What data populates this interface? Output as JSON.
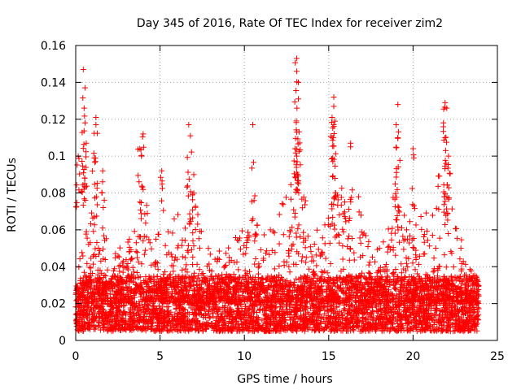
{
  "chart_data": {
    "type": "scatter",
    "title": "Day 345 of 2016, Rate Of TEC Index for receiver zim2",
    "xlabel": "GPS time / hours",
    "ylabel": "ROTI / TECUs",
    "xlim": [
      0,
      25
    ],
    "ylim": [
      0,
      0.16
    ],
    "xticks": [
      0,
      5,
      10,
      15,
      20,
      25
    ],
    "xtick_labels": [
      "0",
      "5",
      "10",
      "15",
      "20",
      "25"
    ],
    "yticks": [
      0,
      0.02,
      0.04,
      0.06,
      0.08,
      0.1,
      0.12,
      0.14,
      0.16
    ],
    "ytick_labels": [
      "0",
      "0.02",
      "0.04",
      "0.06",
      "0.08",
      "0.1",
      "0.12",
      "0.14",
      "0.16"
    ],
    "grid": true,
    "marker": "+",
    "color": "#ff0000",
    "data_x_range": [
      0,
      23.9
    ],
    "baseline_band": [
      0.005,
      0.035
    ],
    "series": [
      {
        "name": "ROTI",
        "peaks": [
          {
            "x": 0.15,
            "y": 0.1
          },
          {
            "x": 0.45,
            "y": 0.147
          },
          {
            "x": 0.55,
            "y": 0.137
          },
          {
            "x": 0.5,
            "y": 0.126
          },
          {
            "x": 0.55,
            "y": 0.118
          },
          {
            "x": 1.2,
            "y": 0.121
          },
          {
            "x": 1.2,
            "y": 0.117
          },
          {
            "x": 1.1,
            "y": 0.099
          },
          {
            "x": 1.6,
            "y": 0.092
          },
          {
            "x": 3.8,
            "y": 0.104
          },
          {
            "x": 3.9,
            "y": 0.1
          },
          {
            "x": 4.0,
            "y": 0.112
          },
          {
            "x": 5.1,
            "y": 0.092
          },
          {
            "x": 6.7,
            "y": 0.117
          },
          {
            "x": 6.8,
            "y": 0.111
          },
          {
            "x": 7.0,
            "y": 0.09
          },
          {
            "x": 10.5,
            "y": 0.117
          },
          {
            "x": 13.1,
            "y": 0.153
          },
          {
            "x": 13.1,
            "y": 0.146
          },
          {
            "x": 13.2,
            "y": 0.14
          },
          {
            "x": 13.2,
            "y": 0.131
          },
          {
            "x": 13.1,
            "y": 0.113
          },
          {
            "x": 13.0,
            "y": 0.104
          },
          {
            "x": 13.1,
            "y": 0.1
          },
          {
            "x": 15.3,
            "y": 0.132
          },
          {
            "x": 15.3,
            "y": 0.127
          },
          {
            "x": 15.2,
            "y": 0.121
          },
          {
            "x": 15.3,
            "y": 0.117
          },
          {
            "x": 15.2,
            "y": 0.11
          },
          {
            "x": 16.3,
            "y": 0.107
          },
          {
            "x": 19.1,
            "y": 0.128
          },
          {
            "x": 19.0,
            "y": 0.117
          },
          {
            "x": 19.1,
            "y": 0.11
          },
          {
            "x": 20.0,
            "y": 0.104
          },
          {
            "x": 21.9,
            "y": 0.129
          },
          {
            "x": 22.0,
            "y": 0.126
          },
          {
            "x": 21.8,
            "y": 0.118
          },
          {
            "x": 21.9,
            "y": 0.11
          },
          {
            "x": 22.1,
            "y": 0.1
          }
        ],
        "activity_profile": [
          {
            "x": 0,
            "y": 0.08
          },
          {
            "x": 0.5,
            "y": 0.09
          },
          {
            "x": 1,
            "y": 0.07
          },
          {
            "x": 1.5,
            "y": 0.07
          },
          {
            "x": 2,
            "y": 0.05
          },
          {
            "x": 2.5,
            "y": 0.05
          },
          {
            "x": 3,
            "y": 0.06
          },
          {
            "x": 3.5,
            "y": 0.07
          },
          {
            "x": 4,
            "y": 0.09
          },
          {
            "x": 4.5,
            "y": 0.05
          },
          {
            "x": 5,
            "y": 0.06
          },
          {
            "x": 5.5,
            "y": 0.06
          },
          {
            "x": 6,
            "y": 0.07
          },
          {
            "x": 6.5,
            "y": 0.08
          },
          {
            "x": 7,
            "y": 0.08
          },
          {
            "x": 7.5,
            "y": 0.06
          },
          {
            "x": 8,
            "y": 0.05
          },
          {
            "x": 8.5,
            "y": 0.05
          },
          {
            "x": 9,
            "y": 0.05
          },
          {
            "x": 9.5,
            "y": 0.06
          },
          {
            "x": 10,
            "y": 0.06
          },
          {
            "x": 10.5,
            "y": 0.07
          },
          {
            "x": 11,
            "y": 0.06
          },
          {
            "x": 11.5,
            "y": 0.06
          },
          {
            "x": 12,
            "y": 0.07
          },
          {
            "x": 12.5,
            "y": 0.08
          },
          {
            "x": 13,
            "y": 0.1
          },
          {
            "x": 13.5,
            "y": 0.08
          },
          {
            "x": 14,
            "y": 0.07
          },
          {
            "x": 14.5,
            "y": 0.06
          },
          {
            "x": 15,
            "y": 0.07
          },
          {
            "x": 15.5,
            "y": 0.09
          },
          {
            "x": 16,
            "y": 0.08
          },
          {
            "x": 16.5,
            "y": 0.09
          },
          {
            "x": 17,
            "y": 0.07
          },
          {
            "x": 17.5,
            "y": 0.05
          },
          {
            "x": 18,
            "y": 0.05
          },
          {
            "x": 18.5,
            "y": 0.06
          },
          {
            "x": 19,
            "y": 0.09
          },
          {
            "x": 19.5,
            "y": 0.07
          },
          {
            "x": 20,
            "y": 0.07
          },
          {
            "x": 20.5,
            "y": 0.07
          },
          {
            "x": 21,
            "y": 0.08
          },
          {
            "x": 21.5,
            "y": 0.09
          },
          {
            "x": 22,
            "y": 0.1
          },
          {
            "x": 22.5,
            "y": 0.07
          },
          {
            "x": 23,
            "y": 0.05
          },
          {
            "x": 23.5,
            "y": 0.04
          },
          {
            "x": 23.9,
            "y": 0.03
          }
        ]
      }
    ]
  }
}
